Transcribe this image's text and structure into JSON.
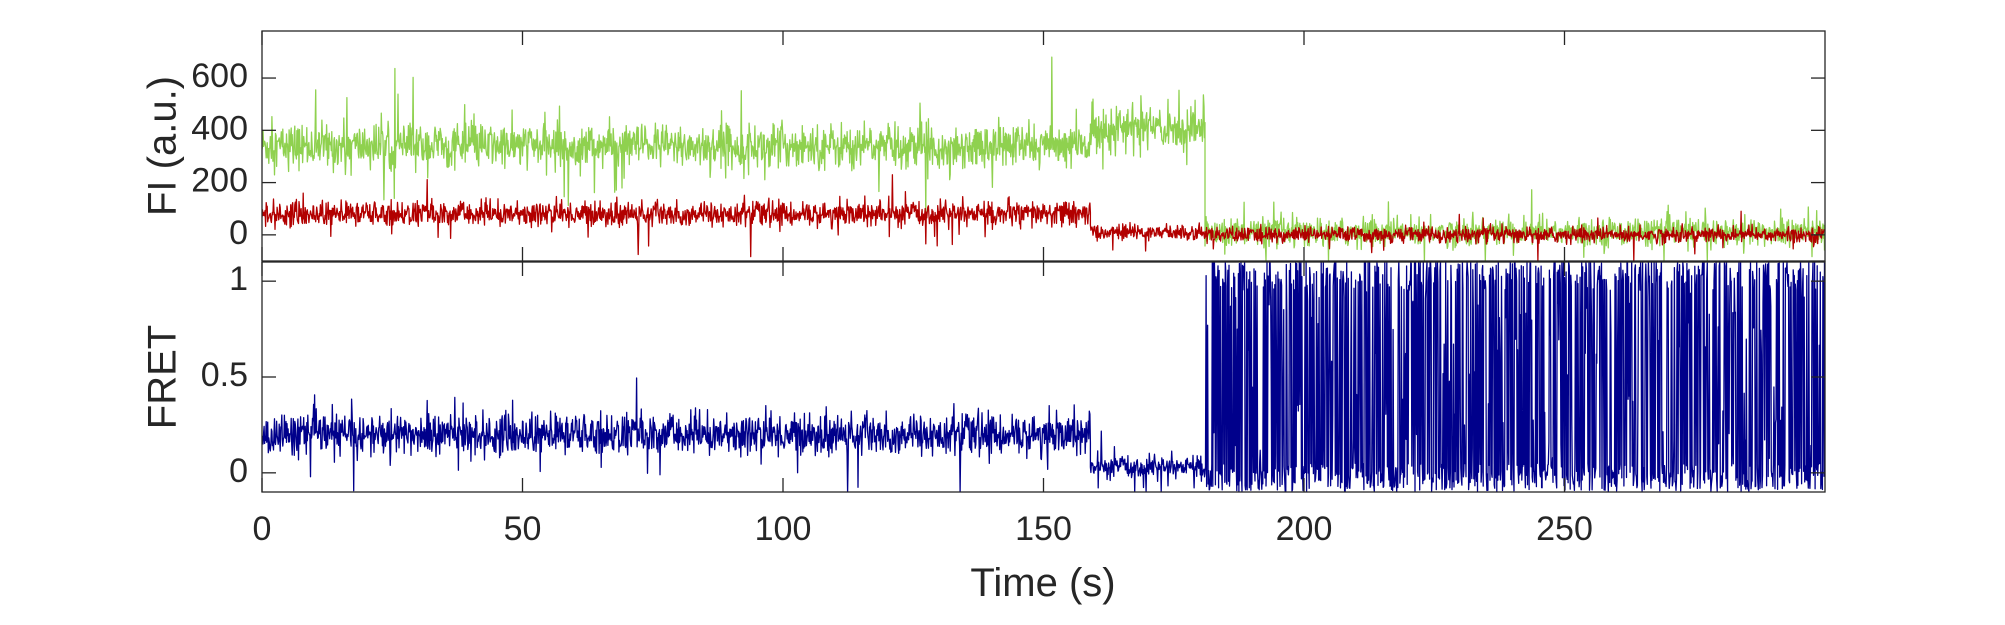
{
  "chart_data": [
    {
      "type": "line",
      "panel": "top",
      "ylabel": "FI (a.u.)",
      "xlabel": "",
      "xlim": [
        0,
        300
      ],
      "ylim": [
        -100,
        780
      ],
      "yticks": [
        0,
        200,
        400,
        600
      ],
      "ytick_labels": [
        "0",
        "200",
        "400",
        "600"
      ],
      "xticks": [
        0,
        50,
        100,
        150,
        200,
        250
      ],
      "xtick_labels": [],
      "grid": false,
      "series": [
        {
          "color": "#8fd14f",
          "description_segments": [
            {
              "x_start": 0,
              "x_end": 159,
              "mean": 340,
              "noise": 70
            },
            {
              "x_start": 159,
              "x_end": 181,
              "mean": 410,
              "noise": 70
            },
            {
              "x_start": 181,
              "x_end": 300,
              "mean": 10,
              "noise": 45
            }
          ]
        },
        {
          "color": "#b20000",
          "description_segments": [
            {
              "x_start": 0,
              "x_end": 159,
              "mean": 80,
              "noise": 40
            },
            {
              "x_start": 159,
              "x_end": 181,
              "mean": 10,
              "noise": 25
            },
            {
              "x_start": 181,
              "x_end": 300,
              "mean": 0,
              "noise": 25
            }
          ]
        }
      ]
    },
    {
      "type": "line",
      "panel": "bottom",
      "ylabel": "FRET",
      "xlabel": "Time (s)",
      "xlim": [
        0,
        300
      ],
      "ylim": [
        -0.1,
        1.1
      ],
      "yticks": [
        0,
        0.5,
        1
      ],
      "ytick_labels": [
        "0",
        "0.5",
        "1"
      ],
      "xticks": [
        0,
        50,
        100,
        150,
        200,
        250
      ],
      "xtick_labels": [
        "0",
        "50",
        "100",
        "150",
        "200",
        "250"
      ],
      "grid": false,
      "series": [
        {
          "color": "#00008b",
          "description_segments": [
            {
              "x_start": 0,
              "x_end": 159,
              "mean": 0.2,
              "noise": 0.09
            },
            {
              "x_start": 159,
              "x_end": 181,
              "mean": 0.03,
              "noise": 0.05
            },
            {
              "x_start": 181,
              "x_end": 300,
              "mean": 0.5,
              "noise": 0.6
            }
          ]
        }
      ]
    }
  ]
}
